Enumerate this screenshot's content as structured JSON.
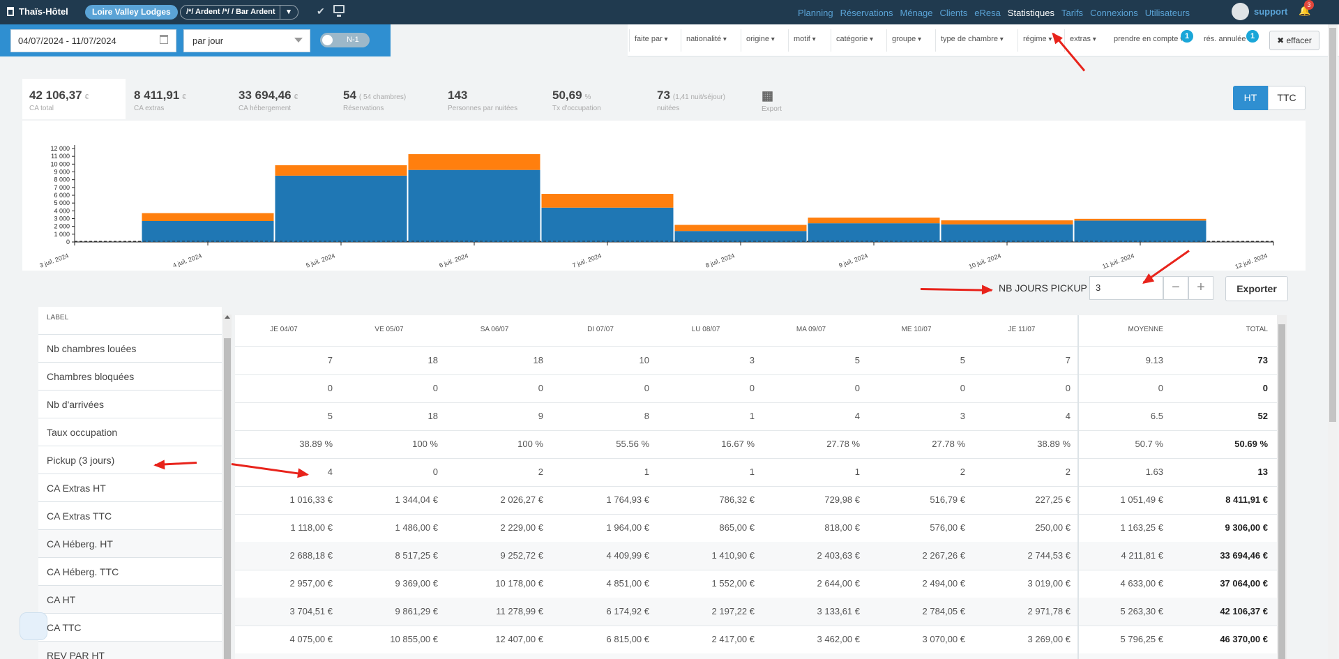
{
  "app": {
    "name": "Thaïs-Hôtel",
    "hotel": "Loire Valley Lodges",
    "bar_selector": "/*/ Ardent /*/ / Bar Ardent"
  },
  "nav": {
    "items": [
      "Planning",
      "Réservations",
      "Ménage",
      "Clients",
      "eResa",
      "Statistiques",
      "Tarifs",
      "Connexions",
      "Utilisateurs"
    ],
    "active": "Statistiques"
  },
  "user": {
    "name": "support",
    "notifications": "3"
  },
  "filters": {
    "date_range": "04/07/2024 - 11/07/2024",
    "period": "par jour",
    "n1_label": "N-1",
    "dropdowns": [
      "faite par",
      "nationalité",
      "origine",
      "motif",
      "catégorie",
      "groupe",
      "type de chambre",
      "régime",
      "extras"
    ],
    "prendre_en_compte": "prendre en compte",
    "prendre_badge": "1",
    "res_annulee": "rés. annulée",
    "res_badge": "1",
    "clear": "✖ effacer"
  },
  "kpis": [
    {
      "value": "42 106,37",
      "unit": "€",
      "label": "CA total"
    },
    {
      "value": "8 411,91",
      "unit": "€",
      "label": "CA extras"
    },
    {
      "value": "33 694,46",
      "unit": "€",
      "label": "CA hébergement"
    },
    {
      "value": "54",
      "unit": "( 54 chambres)",
      "label": "Réservations"
    },
    {
      "value": "143",
      "unit": "",
      "label": "Personnes par nuitées"
    },
    {
      "value": "50,69",
      "unit": "%",
      "label": "Tx d'occupation"
    },
    {
      "value": "73",
      "unit": "(1,41 nuit/séjour)",
      "label": "nuitées"
    },
    {
      "value": "",
      "unit": "",
      "label": "Export"
    }
  ],
  "toggle": {
    "ht": "HT",
    "ttc": "TTC"
  },
  "chart_data": {
    "type": "bar",
    "stacked": true,
    "x_tick_labels": [
      "3 juil. 2024",
      "4 juil. 2024",
      "5 juil. 2024",
      "6 juil. 2024",
      "7 juil. 2024",
      "8 juil. 2024",
      "9 juil. 2024",
      "10 juil. 2024",
      "11 juil. 2024",
      "12 juil. 2024"
    ],
    "y_tick_labels": [
      "0",
      "1 000",
      "2 000",
      "3 000",
      "4 000",
      "5 000",
      "6 000",
      "7 000",
      "8 000",
      "9 000",
      "10 000",
      "11 000",
      "12 000"
    ],
    "ylim": [
      0,
      12000
    ],
    "series": [
      {
        "color": "#1f77b4",
        "values": [
          2688.18,
          8517.25,
          9252.72,
          4409.99,
          1410.9,
          2403.63,
          2267.26,
          2744.53
        ]
      },
      {
        "color": "#ff7f0e",
        "values": [
          1016.33,
          1344.04,
          2026.27,
          1764.93,
          786.32,
          729.98,
          516.79,
          227.25
        ]
      }
    ],
    "grid": false
  },
  "pickup": {
    "label": "NB JOURS PICKUP",
    "value": "3",
    "minus": "−",
    "plus": "+",
    "export": "Exporter"
  },
  "table": {
    "label_header": "LABEL",
    "columns": [
      "JE 04/07",
      "VE 05/07",
      "SA 06/07",
      "DI 07/07",
      "LU 08/07",
      "MA 09/07",
      "ME 10/07",
      "JE 11/07",
      "MOYENNE",
      "TOTAL"
    ],
    "rows": [
      {
        "label": "Nb chambres louées",
        "cells": [
          "7",
          "18",
          "18",
          "10",
          "3",
          "5",
          "5",
          "7",
          "9.13",
          "73"
        ]
      },
      {
        "label": "Chambres bloquées",
        "cells": [
          "0",
          "0",
          "0",
          "0",
          "0",
          "0",
          "0",
          "0",
          "0",
          "0"
        ]
      },
      {
        "label": "Nb d'arrivées",
        "cells": [
          "5",
          "18",
          "9",
          "8",
          "1",
          "4",
          "3",
          "4",
          "6.5",
          "52"
        ]
      },
      {
        "label": "Taux occupation",
        "cells": [
          "38.89 %",
          "100 %",
          "100 %",
          "55.56 %",
          "16.67 %",
          "27.78 %",
          "27.78 %",
          "38.89 %",
          "50.7 %",
          "50.69 %"
        ]
      },
      {
        "label": "Pickup (3 jours)",
        "cells": [
          "4",
          "0",
          "2",
          "1",
          "1",
          "1",
          "2",
          "2",
          "1.63",
          "13"
        ]
      },
      {
        "label": "CA Extras HT",
        "cells": [
          "1 016,33 €",
          "1 344,04 €",
          "2 026,27 €",
          "1 764,93 €",
          "786,32 €",
          "729,98 €",
          "516,79 €",
          "227,25 €",
          "1 051,49 €",
          "8 411,91 €"
        ]
      },
      {
        "label": "CA Extras TTC",
        "cells": [
          "1 118,00 €",
          "1 486,00 €",
          "2 229,00 €",
          "1 964,00 €",
          "865,00 €",
          "818,00 €",
          "576,00 €",
          "250,00 €",
          "1 163,25 €",
          "9 306,00 €"
        ]
      },
      {
        "label": "CA Héberg. HT",
        "cells": [
          "2 688,18 €",
          "8 517,25 €",
          "9 252,72 €",
          "4 409,99 €",
          "1 410,90 €",
          "2 403,63 €",
          "2 267,26 €",
          "2 744,53 €",
          "4 211,81 €",
          "33 694,46 €"
        ]
      },
      {
        "label": "CA Héberg. TTC",
        "cells": [
          "2 957,00 €",
          "9 369,00 €",
          "10 178,00 €",
          "4 851,00 €",
          "1 552,00 €",
          "2 644,00 €",
          "2 494,00 €",
          "3 019,00 €",
          "4 633,00 €",
          "37 064,00 €"
        ]
      },
      {
        "label": "CA HT",
        "cells": [
          "3 704,51 €",
          "9 861,29 €",
          "11 278,99 €",
          "6 174,92 €",
          "2 197,22 €",
          "3 133,61 €",
          "2 784,05 €",
          "2 971,78 €",
          "5 263,30 €",
          "42 106,37 €"
        ]
      },
      {
        "label": "CA TTC",
        "cells": [
          "4 075,00 €",
          "10 855,00 €",
          "12 407,00 €",
          "6 815,00 €",
          "2 417,00 €",
          "3 462,00 €",
          "3 070,00 €",
          "3 269,00 €",
          "5 796,25 €",
          "46 370,00 €"
        ]
      },
      {
        "label": "REV PAR HT",
        "cells": [
          "",
          "",
          "",
          "",
          "",
          "",
          "",
          "",
          "",
          ""
        ]
      }
    ]
  }
}
